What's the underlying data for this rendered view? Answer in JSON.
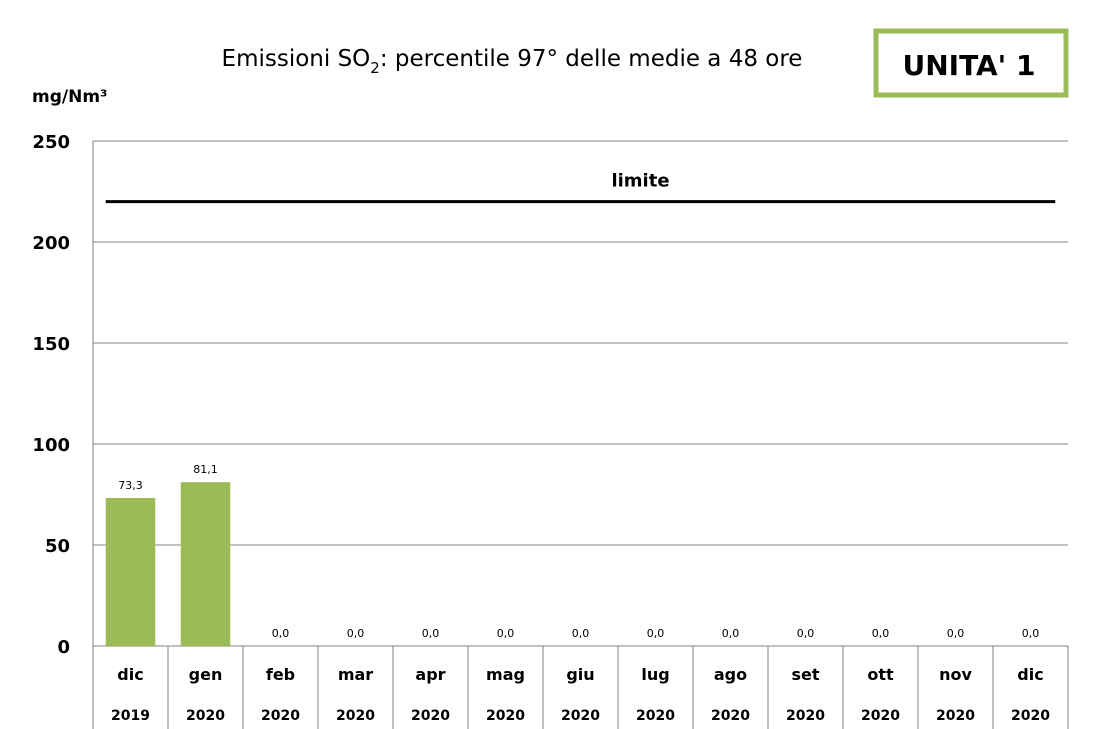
{
  "badge": "UNITA' 1",
  "colors": {
    "bar": "#9bbb59",
    "badge_border": "#9bbb59",
    "grid": "#808080",
    "limit": "#000000"
  },
  "chart_data": {
    "type": "bar",
    "title_main": "Emissioni SO",
    "title_sub": "2",
    "title_rest": ": percentile 97° delle medie a 48 ore",
    "ylabel": "mg/Nm³",
    "ylim": [
      0,
      250
    ],
    "yticks": [
      0,
      50,
      100,
      150,
      200,
      250
    ],
    "categories": [
      "dic",
      "gen",
      "feb",
      "mar",
      "apr",
      "mag",
      "giu",
      "lug",
      "ago",
      "set",
      "ott",
      "nov",
      "dic"
    ],
    "years": [
      "2019",
      "2020",
      "2020",
      "2020",
      "2020",
      "2020",
      "2020",
      "2020",
      "2020",
      "2020",
      "2020",
      "2020",
      "2020"
    ],
    "values": [
      73.3,
      81.1,
      0,
      0,
      0,
      0,
      0,
      0,
      0,
      0,
      0,
      0,
      0
    ],
    "value_labels": [
      "73,3",
      "81,1",
      "0,0",
      "0,0",
      "0,0",
      "0,0",
      "0,0",
      "0,0",
      "0,0",
      "0,0",
      "0,0",
      "0,0",
      "0,0"
    ],
    "limit": {
      "label": "limite",
      "value": 220
    },
    "grid": true
  }
}
